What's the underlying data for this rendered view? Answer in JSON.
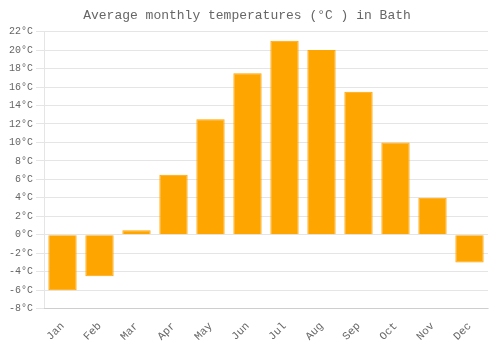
{
  "chart_data": {
    "type": "bar",
    "title": "Average monthly temperatures (°C ) in Bath",
    "categories": [
      "Jan",
      "Feb",
      "Mar",
      "Apr",
      "May",
      "Jun",
      "Jul",
      "Aug",
      "Sep",
      "Oct",
      "Nov",
      "Dec"
    ],
    "values": [
      -6.0,
      -4.5,
      0.5,
      6.5,
      12.5,
      17.5,
      21.0,
      20.0,
      15.5,
      10.0,
      4.0,
      -3.0
    ],
    "color": "#FFA500",
    "ylim": [
      -8,
      22
    ],
    "yticks": [
      {
        "value": -8,
        "label": "-8°C"
      },
      {
        "value": -6,
        "label": "-6°C"
      },
      {
        "value": -4,
        "label": "-4°C"
      },
      {
        "value": -2,
        "label": "-2°C"
      },
      {
        "value": 0,
        "label": "0°C"
      },
      {
        "value": 2,
        "label": "2°C"
      },
      {
        "value": 4,
        "label": "4°C"
      },
      {
        "value": 6,
        "label": "6°C"
      },
      {
        "value": 8,
        "label": "8°C"
      },
      {
        "value": 10,
        "label": "10°C"
      },
      {
        "value": 12,
        "label": "12°C"
      },
      {
        "value": 14,
        "label": "14°C"
      },
      {
        "value": 16,
        "label": "16°C"
      },
      {
        "value": 18,
        "label": "18°C"
      },
      {
        "value": 20,
        "label": "20°C"
      },
      {
        "value": 22,
        "label": "22°C"
      }
    ],
    "grid": true
  }
}
